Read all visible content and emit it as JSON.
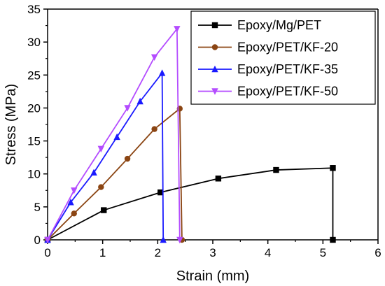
{
  "chart_data": {
    "type": "line",
    "title": "",
    "xlabel": "Strain (mm)",
    "ylabel": "Stress (MPa)",
    "xlim": [
      0,
      6
    ],
    "ylim": [
      0,
      35
    ],
    "xticks": [
      0,
      1,
      2,
      3,
      4,
      5,
      6
    ],
    "yticks": [
      0,
      5,
      10,
      15,
      20,
      25,
      30,
      35
    ],
    "grid": false,
    "legend_position": "top-right",
    "series": [
      {
        "name": "Epoxy/Mg/PET",
        "color": "#000000",
        "marker": "square",
        "x": [
          0,
          1.02,
          2.05,
          3.1,
          4.15,
          5.18,
          5.18
        ],
        "y": [
          0,
          4.5,
          7.2,
          9.3,
          10.6,
          10.9,
          0
        ]
      },
      {
        "name": "Epoxy/PET/KF-20",
        "color": "#8b4513",
        "marker": "circle",
        "x": [
          0,
          0.48,
          0.97,
          1.45,
          1.94,
          2.4,
          2.44
        ],
        "y": [
          0,
          4.0,
          8.0,
          12.3,
          16.8,
          19.9,
          0
        ]
      },
      {
        "name": "Epoxy/PET/KF-35",
        "color": "#1a1aff",
        "marker": "triangle-up",
        "x": [
          0,
          0.42,
          0.84,
          1.26,
          1.68,
          2.08,
          2.1
        ],
        "y": [
          0,
          5.7,
          10.2,
          15.6,
          21.0,
          25.3,
          0
        ]
      },
      {
        "name": "Epoxy/PET/KF-50",
        "color": "#b44cff",
        "marker": "triangle-down",
        "x": [
          0,
          0.48,
          0.97,
          1.45,
          1.94,
          2.35,
          2.4
        ],
        "y": [
          0,
          7.5,
          13.8,
          20.0,
          27.7,
          32.0,
          0
        ]
      }
    ]
  }
}
